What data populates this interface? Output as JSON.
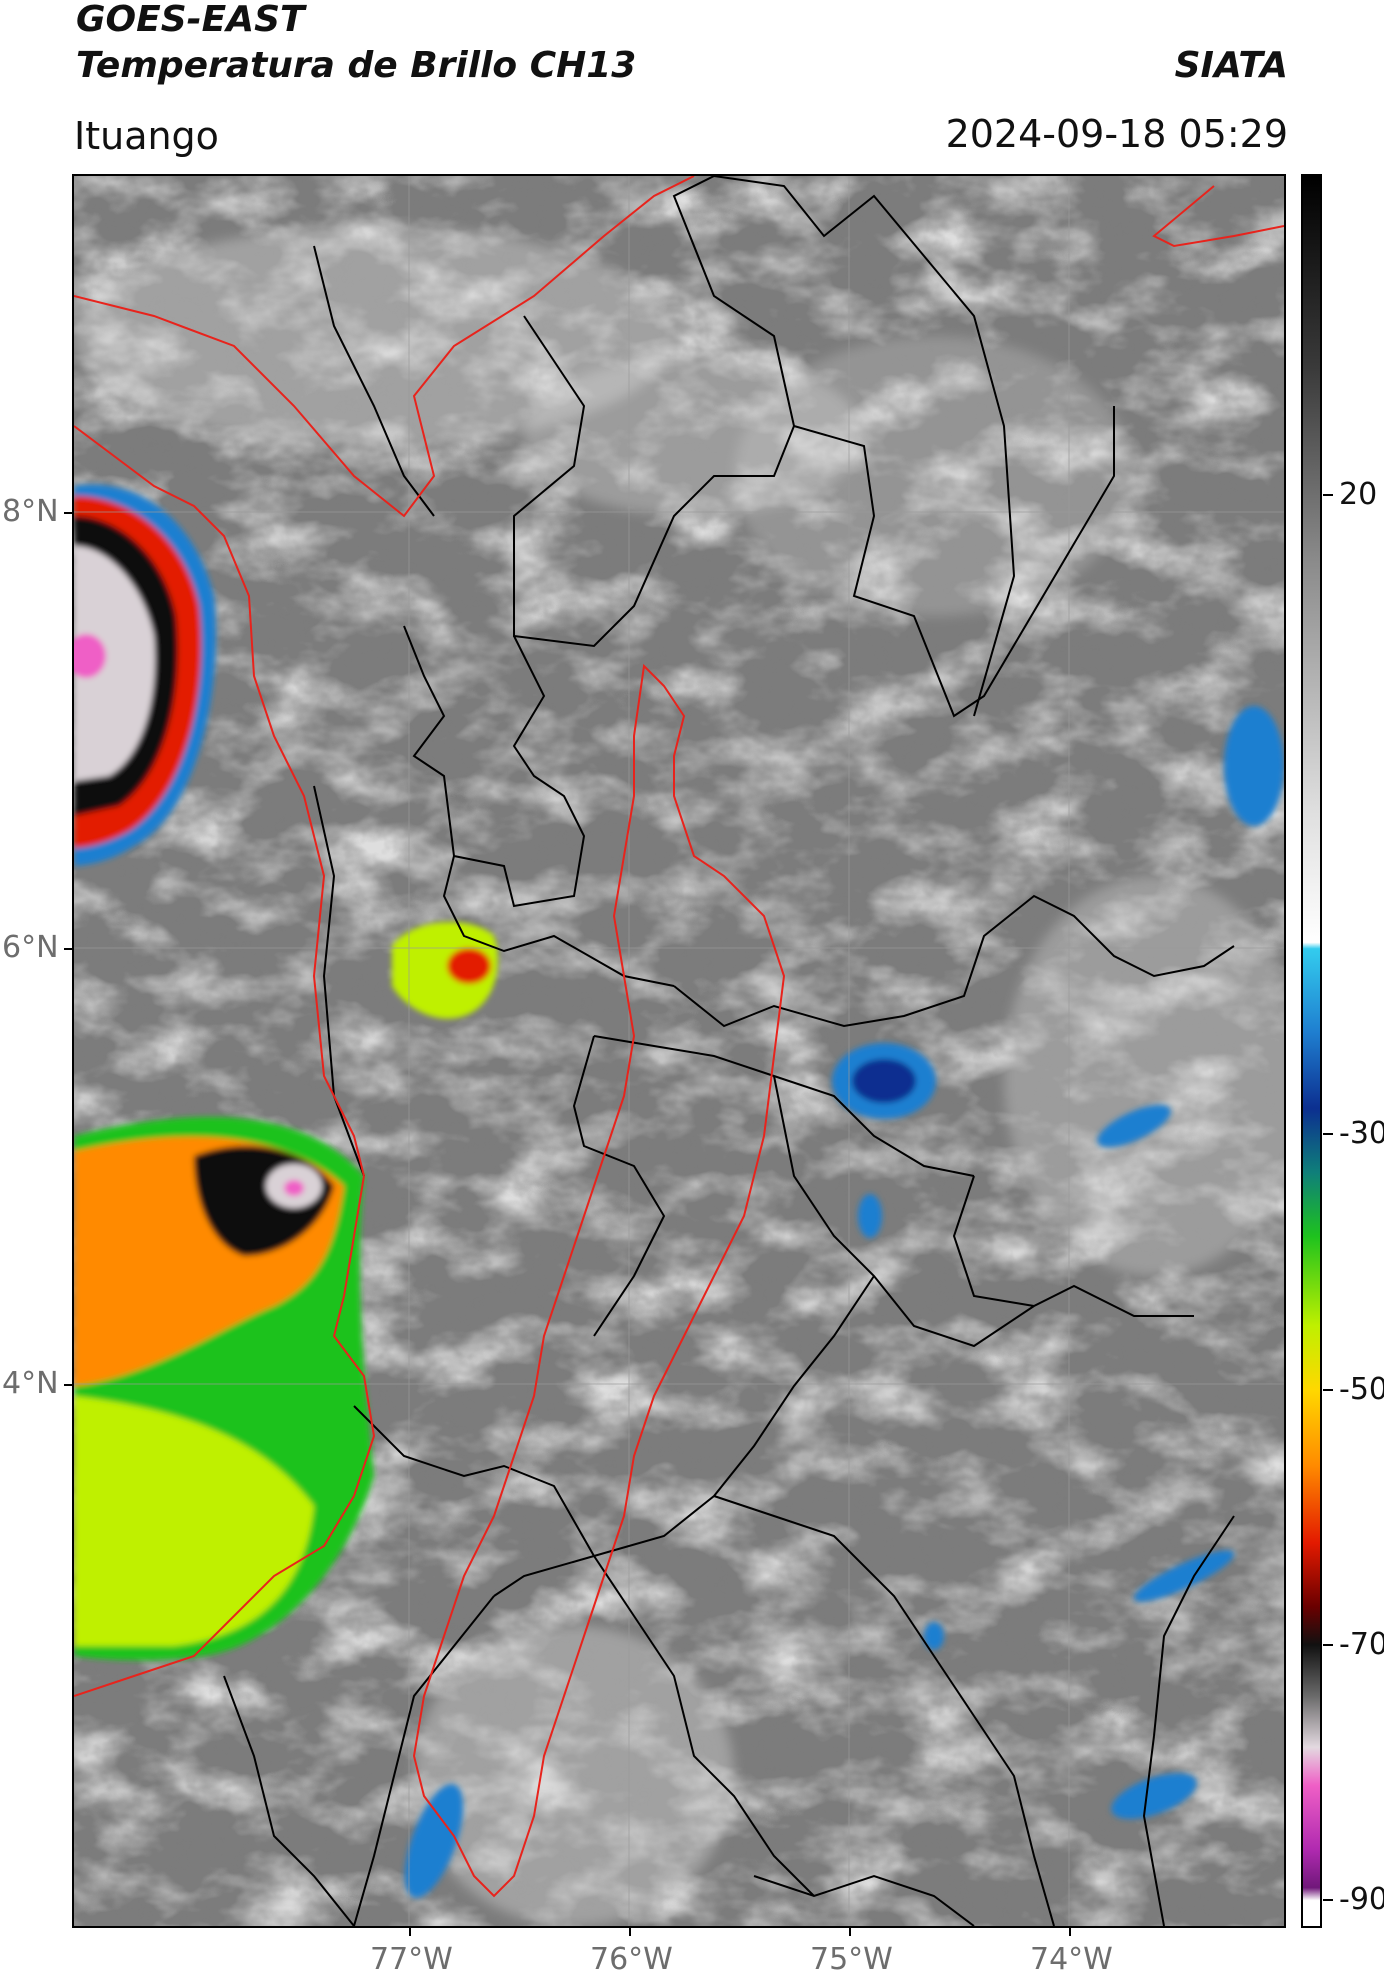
{
  "header": {
    "satellite": "GOES-EAST",
    "product": "Temperatura de Brillo CH13",
    "organization": "SIATA",
    "location": "Ituango",
    "datetime": "2024-09-18 05:29"
  },
  "map": {
    "lon_range": [
      -78.5,
      -73.0
    ],
    "lat_range": [
      1.5,
      9.55
    ],
    "latitude_labels": [
      "8°N",
      "6°N",
      "4°N"
    ],
    "longitude_labels": [
      "77°W",
      "76°W",
      "75°W",
      "74°W"
    ],
    "colors": {
      "cloud_free_gray": "#7c7c7c",
      "department_border": "#000000",
      "highlight_border": "#e8231c"
    }
  },
  "colorbar": {
    "labels": [
      "20",
      "-30",
      "-50",
      "-70",
      "-90"
    ],
    "values": [
      20,
      -30,
      -50,
      -70,
      -90
    ],
    "range": [
      -92,
      45
    ],
    "stops": [
      {
        "v": 45,
        "c": "#000000"
      },
      {
        "v": 30,
        "c": "#3a3a3a"
      },
      {
        "v": 15,
        "c": "#8a8a8a"
      },
      {
        "v": -5,
        "c": "#e0e0e0"
      },
      {
        "v": -15,
        "c": "#ffffff"
      },
      {
        "v": -15.5,
        "c": "#33ccee"
      },
      {
        "v": -22,
        "c": "#1f7fd0"
      },
      {
        "v": -28,
        "c": "#0c2f90"
      },
      {
        "v": -33,
        "c": "#0f7f7a"
      },
      {
        "v": -38,
        "c": "#1ec21e"
      },
      {
        "v": -45,
        "c": "#bff000"
      },
      {
        "v": -50,
        "c": "#ffd800"
      },
      {
        "v": -56,
        "c": "#ff8a00"
      },
      {
        "v": -62,
        "c": "#e31a00"
      },
      {
        "v": -67,
        "c": "#6a0000"
      },
      {
        "v": -70,
        "c": "#111111"
      },
      {
        "v": -74,
        "c": "#6a6a6a"
      },
      {
        "v": -78,
        "c": "#e3d9e0"
      },
      {
        "v": -81,
        "c": "#ef5fc6"
      },
      {
        "v": -86,
        "c": "#b02ab0"
      },
      {
        "v": -89,
        "c": "#70187a"
      },
      {
        "v": -90,
        "c": "#ffffff"
      }
    ]
  }
}
